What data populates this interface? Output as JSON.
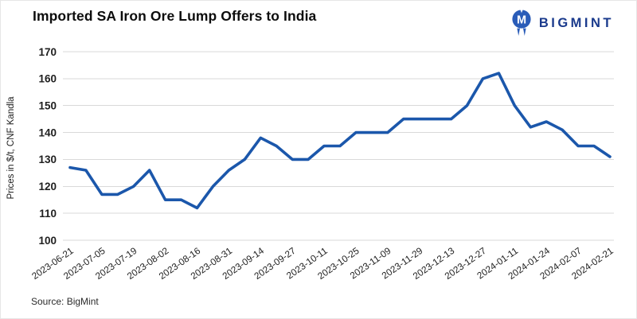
{
  "header": {
    "title": "Imported SA Iron Ore Lump Offers to India",
    "logo_text": "BIGMINT"
  },
  "source": {
    "label": "Source: BigMint"
  },
  "colors": {
    "line": "#1b57ab",
    "grid": "#d9d9d9",
    "tick_text": "#1f1f1f",
    "logo_icon": "#2a5cb8",
    "logo_text_color": "#1a3a8c"
  },
  "chart_data": {
    "type": "line",
    "title": "Imported SA Iron Ore Lump Offers to India",
    "xlabel": "",
    "ylabel": "Prices in $/t, CNF Kandla",
    "ylim": [
      100,
      170
    ],
    "y_ticks": [
      100,
      110,
      120,
      130,
      140,
      150,
      160,
      170
    ],
    "grid": "horizontal",
    "legend": "none",
    "x_tick_labels": [
      "2023-06-21",
      "2023-07-05",
      "2023-07-19",
      "2023-08-02",
      "2023-08-16",
      "2023-08-31",
      "2023-09-14",
      "2023-09-27",
      "2023-10-11",
      "2023-10-25",
      "2023-11-09",
      "2023-11-29",
      "2023-12-13",
      "2023-12-27",
      "2024-01-11",
      "2024-01-24",
      "2024-02-07",
      "2024-02-21"
    ],
    "x_ticks_every_n_points": 2,
    "series": [
      {
        "values": [
          127,
          126,
          117,
          117,
          120,
          126,
          115,
          115,
          112,
          120,
          126,
          130,
          138,
          135,
          130,
          130,
          135,
          135,
          140,
          140,
          140,
          145,
          145,
          145,
          145,
          150,
          160,
          162,
          150,
          142,
          144,
          141,
          135,
          135,
          131
        ]
      }
    ]
  }
}
